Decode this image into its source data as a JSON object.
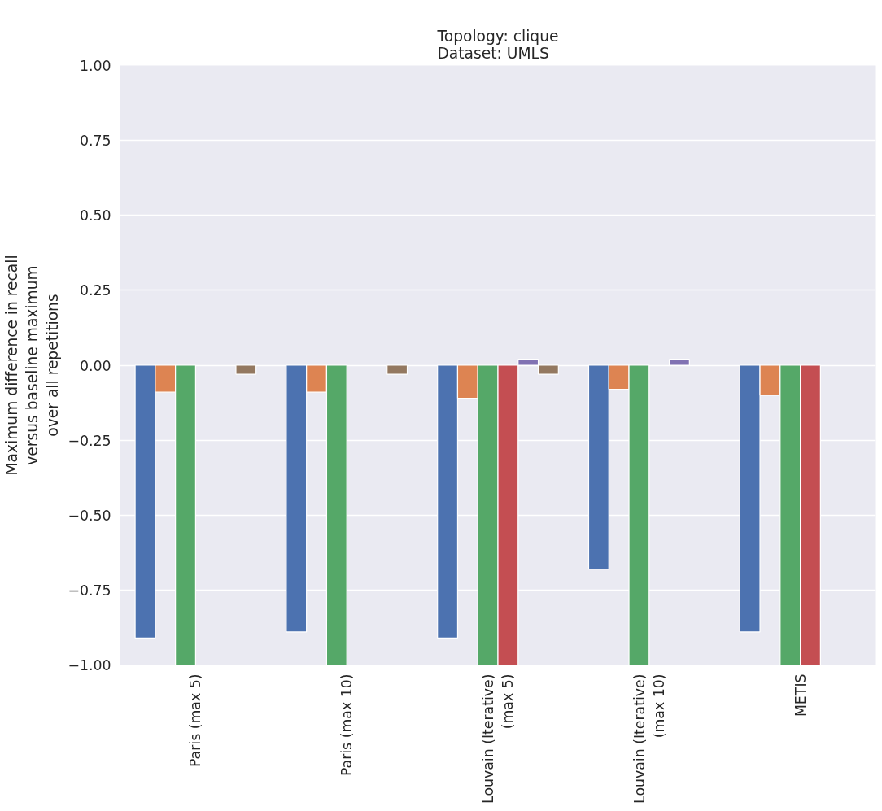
{
  "chart_data": {
    "type": "bar",
    "title": "Topology: clique\nDataset: UMLS",
    "ylabel": "Maximum difference in recall\nversus baseline maximum\nover all repetitions",
    "categories": [
      "Paris (max 5)",
      "Paris (max 10)",
      "Louvain (Iterative)\n(max 5)",
      "Louvain (Iterative)\n(max 10)",
      "METIS"
    ],
    "series": [
      {
        "color": "#4c72b0",
        "values": [
          -0.91,
          -0.89,
          -0.91,
          -0.68,
          -0.89
        ]
      },
      {
        "color": "#dd8452",
        "values": [
          -0.09,
          -0.09,
          -0.11,
          -0.08,
          -0.1
        ]
      },
      {
        "color": "#55a868",
        "values": [
          -1.0,
          -1.0,
          -1.0,
          -1.0,
          -1.0
        ]
      },
      {
        "color": "#c44e52",
        "values": [
          null,
          null,
          -1.0,
          null,
          -1.0
        ]
      },
      {
        "color": "#8172b3",
        "values": [
          null,
          null,
          0.02,
          0.02,
          null
        ]
      },
      {
        "color": "#937860",
        "values": [
          -0.03,
          -0.03,
          -0.03,
          null,
          null
        ]
      }
    ],
    "ylim": [
      -1.0,
      1.0
    ],
    "yticks": [
      {
        "value": -1.0,
        "label": "−1.00"
      },
      {
        "value": -0.75,
        "label": "−0.75"
      },
      {
        "value": -0.5,
        "label": "−0.50"
      },
      {
        "value": -0.25,
        "label": "−0.25"
      },
      {
        "value": 0,
        "label": "0.00"
      },
      {
        "value": 0.25,
        "label": "0.25"
      },
      {
        "value": 0.5,
        "label": "0.50"
      },
      {
        "value": 0.75,
        "label": "0.75"
      },
      {
        "value": 1.0,
        "label": "1.00"
      }
    ],
    "grid": "y"
  }
}
